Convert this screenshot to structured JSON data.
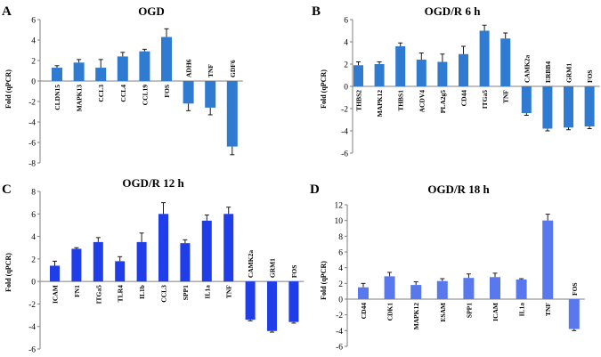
{
  "chart_data": [
    {
      "type": "bar",
      "panel": "A",
      "title": "OGD",
      "ylabel": "Fold (qPCR)",
      "ylim": [
        -8,
        6
      ],
      "yticks": [
        6,
        4,
        2,
        0,
        -2,
        -4,
        -6,
        -8
      ],
      "color": "#2f7bd2",
      "categories": [
        "CLDN15",
        "MAPK13",
        "CCL3",
        "CCL4",
        "CCL19",
        "FOS",
        "ADH6",
        "TNF",
        "GDF6"
      ],
      "values": [
        1.3,
        1.8,
        1.3,
        2.4,
        2.9,
        4.3,
        -2.2,
        -2.6,
        -6.4
      ],
      "errors": [
        0.2,
        0.3,
        0.8,
        0.4,
        0.2,
        0.8,
        0.7,
        0.7,
        0.8
      ]
    },
    {
      "type": "bar",
      "panel": "B",
      "title": "OGD/R 6 h",
      "ylabel": "Fold (qPCR)",
      "ylim": [
        -6,
        6
      ],
      "yticks": [
        6,
        4,
        2,
        0,
        -2,
        -4,
        -6
      ],
      "color": "#2f7bd2",
      "categories": [
        "THBS2",
        "MAPK12",
        "THBS1",
        "ACDV4",
        "PLA2g5",
        "CD44",
        "ITGa5",
        "TNF",
        "CAMK2a",
        "ERBB4",
        "GRM1",
        "FOS"
      ],
      "values": [
        1.9,
        2.0,
        3.6,
        2.4,
        2.2,
        2.9,
        5.0,
        4.3,
        -2.4,
        -3.8,
        -3.7,
        -3.6
      ],
      "errors": [
        0.3,
        0.2,
        0.3,
        0.6,
        0.7,
        0.7,
        0.5,
        0.5,
        0.2,
        0.2,
        0.2,
        0.2
      ]
    },
    {
      "type": "bar",
      "panel": "C",
      "title": "OGD/R 12 h",
      "ylabel": "Fold (qPCR)",
      "ylim": [
        -6,
        8
      ],
      "yticks": [
        8,
        6,
        4,
        2,
        0,
        -2,
        -4,
        -6
      ],
      "color": "#1f3de8",
      "categories": [
        "ICAM",
        "FN1",
        "ITGa5",
        "TLR4",
        "IL1b",
        "CCL3",
        "SPP1",
        "IL1a",
        "TNF",
        "CAMK2a",
        "GRM1",
        "FOS"
      ],
      "values": [
        1.4,
        2.9,
        3.5,
        1.8,
        3.5,
        6.0,
        3.4,
        5.4,
        6.0,
        -3.4,
        -4.4,
        -3.6
      ],
      "errors": [
        0.4,
        0.1,
        0.4,
        0.4,
        0.8,
        1.0,
        0.3,
        0.5,
        0.6,
        0.1,
        0.1,
        0.1
      ]
    },
    {
      "type": "bar",
      "panel": "D",
      "title": "OGD/R 18 h",
      "ylabel": "Fold (qPCR)",
      "ylim": [
        -6,
        12
      ],
      "yticks": [
        12,
        10,
        8,
        6,
        4,
        2,
        0,
        -2,
        -4,
        -6
      ],
      "color": "#5a78ee",
      "categories": [
        "CD44",
        "CDK1",
        "MAPK12",
        "ESAM",
        "SPP1",
        "ICAM",
        "IL1a",
        "TNF",
        "FOS"
      ],
      "values": [
        1.5,
        2.9,
        1.8,
        2.3,
        2.7,
        2.8,
        2.5,
        10.0,
        -3.8
      ],
      "errors": [
        0.5,
        0.5,
        0.4,
        0.3,
        0.5,
        0.5,
        0.1,
        0.8,
        0.2
      ]
    }
  ]
}
